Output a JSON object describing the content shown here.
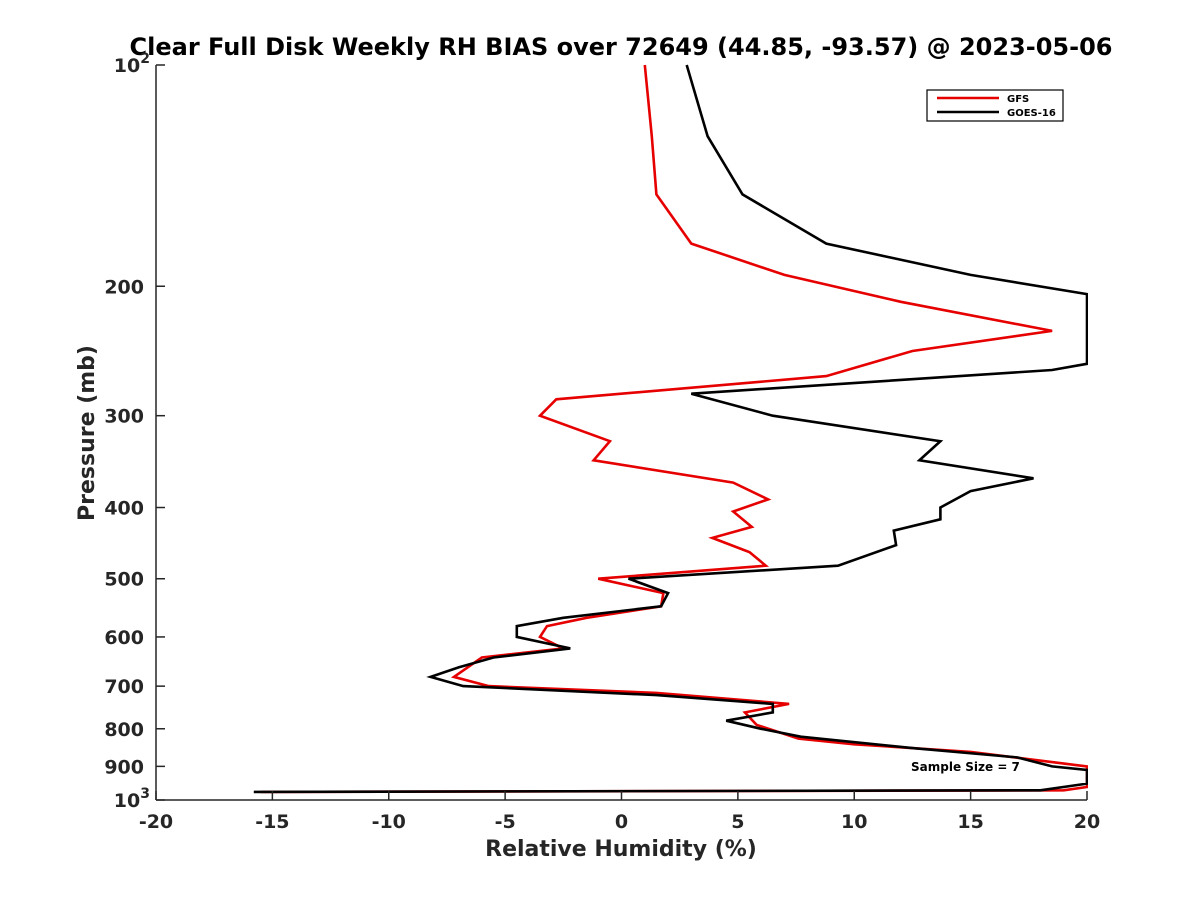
{
  "chart_data": {
    "type": "line",
    "title": "Clear Full Disk Weekly RH BIAS over 72649 (44.85, -93.57) @ 2023-05-06",
    "xlabel": "Relative Humidity (%)",
    "ylabel": "Pressure (mb)",
    "xlim": [
      -20,
      20
    ],
    "ylim": [
      100,
      1000
    ],
    "y_scale": "log",
    "y_reversed": true,
    "grid": false,
    "legend_position": "top-right",
    "x_ticks": [
      -20,
      -15,
      -10,
      -5,
      0,
      5,
      10,
      15,
      20
    ],
    "x_tick_labels": [
      "-20",
      "-15",
      "-10",
      "-5",
      "0",
      "5",
      "10",
      "15",
      "20"
    ],
    "y_ticks": [
      100,
      200,
      300,
      400,
      500,
      600,
      700,
      800,
      900,
      1000
    ],
    "y_tick_labels": [
      {
        "base": "10",
        "exp": "2"
      },
      {
        "base": "200",
        "exp": ""
      },
      {
        "base": "300",
        "exp": ""
      },
      {
        "base": "400",
        "exp": ""
      },
      {
        "base": "500",
        "exp": ""
      },
      {
        "base": "600",
        "exp": ""
      },
      {
        "base": "700",
        "exp": ""
      },
      {
        "base": "800",
        "exp": ""
      },
      {
        "base": "900",
        "exp": ""
      },
      {
        "base": "10",
        "exp": "3"
      }
    ],
    "annotation": "Sample Size = 7",
    "series": [
      {
        "name": "GFS",
        "color": "#e60000",
        "points": [
          [
            1.0,
            100
          ],
          [
            1.3,
            125
          ],
          [
            1.5,
            150
          ],
          [
            3.0,
            175
          ],
          [
            7.0,
            193
          ],
          [
            12.0,
            210
          ],
          [
            18.5,
            230
          ],
          [
            12.5,
            245
          ],
          [
            8.8,
            265
          ],
          [
            -2.8,
            285
          ],
          [
            -3.5,
            300
          ],
          [
            -0.5,
            325
          ],
          [
            -1.2,
            345
          ],
          [
            4.8,
            370
          ],
          [
            6.3,
            390
          ],
          [
            4.8,
            405
          ],
          [
            5.6,
            425
          ],
          [
            3.9,
            440
          ],
          [
            5.5,
            460
          ],
          [
            6.2,
            480
          ],
          [
            -1.0,
            500
          ],
          [
            1.8,
            523
          ],
          [
            1.7,
            545
          ],
          [
            -1.5,
            565
          ],
          [
            -3.2,
            580
          ],
          [
            -3.5,
            600
          ],
          [
            -2.5,
            622
          ],
          [
            -6.0,
            640
          ],
          [
            -7.2,
            680
          ],
          [
            -5.7,
            700
          ],
          [
            1.5,
            715
          ],
          [
            7.2,
            740
          ],
          [
            5.3,
            760
          ],
          [
            5.8,
            790
          ],
          [
            7.6,
            825
          ],
          [
            10.0,
            840
          ],
          [
            15.0,
            860
          ],
          [
            17.5,
            880
          ],
          [
            20.0,
            900
          ],
          [
            20.0,
            960
          ],
          [
            19.0,
            970
          ],
          [
            -15.5,
            975
          ]
        ]
      },
      {
        "name": "GOES-16",
        "color": "#000000",
        "points": [
          [
            2.8,
            100
          ],
          [
            3.7,
            125
          ],
          [
            5.2,
            150
          ],
          [
            8.8,
            175
          ],
          [
            15.0,
            193
          ],
          [
            20.0,
            205
          ],
          [
            20.0,
            255
          ],
          [
            18.5,
            260
          ],
          [
            3.0,
            280
          ],
          [
            6.5,
            300
          ],
          [
            13.7,
            325
          ],
          [
            12.8,
            345
          ],
          [
            17.7,
            365
          ],
          [
            15.0,
            380
          ],
          [
            13.7,
            400
          ],
          [
            13.7,
            415
          ],
          [
            11.7,
            430
          ],
          [
            11.8,
            450
          ],
          [
            9.3,
            480
          ],
          [
            0.3,
            500
          ],
          [
            2.0,
            523
          ],
          [
            1.7,
            545
          ],
          [
            -2.5,
            565
          ],
          [
            -4.5,
            580
          ],
          [
            -4.5,
            600
          ],
          [
            -2.2,
            622
          ],
          [
            -5.5,
            640
          ],
          [
            -7.0,
            660
          ],
          [
            -8.2,
            680
          ],
          [
            -6.8,
            700
          ],
          [
            1.5,
            720
          ],
          [
            6.5,
            740
          ],
          [
            6.5,
            760
          ],
          [
            4.5,
            780
          ],
          [
            6.0,
            800
          ],
          [
            7.7,
            820
          ],
          [
            12.5,
            850
          ],
          [
            17.0,
            875
          ],
          [
            18.5,
            900
          ],
          [
            20.0,
            910
          ],
          [
            20.0,
            950
          ],
          [
            18.0,
            970
          ],
          [
            -15.8,
            975
          ]
        ]
      }
    ]
  }
}
